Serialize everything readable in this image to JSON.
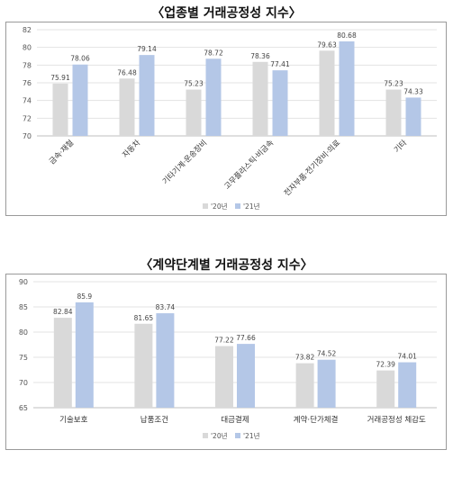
{
  "chart_data": [
    {
      "type": "bar",
      "title": "〈업종별 거래공정성 지수〉",
      "categories": [
        "금속·재철",
        "자동차",
        "기타기계·운송장비",
        "고무플라스틱·비금속",
        "전자부품·전기장비·의료",
        "기타"
      ],
      "series": [
        {
          "name": "'20년",
          "color": "#d9d9d9",
          "values": [
            75.91,
            76.48,
            75.23,
            78.36,
            79.63,
            75.23
          ]
        },
        {
          "name": "'21년",
          "color": "#b4c7e7",
          "values": [
            78.06,
            79.14,
            78.72,
            77.41,
            80.68,
            74.33
          ]
        }
      ],
      "ylim": [
        70,
        82
      ],
      "yticks": [
        70,
        72,
        74,
        76,
        78,
        80,
        82
      ],
      "legend": "bottom",
      "grid": true
    },
    {
      "type": "bar",
      "title": "〈계약단계별 거래공정성 지수〉",
      "categories": [
        "기술보호",
        "납품조건",
        "대금결제",
        "계약·단가체결",
        "거래공정성 체감도"
      ],
      "series": [
        {
          "name": "'20년",
          "color": "#d9d9d9",
          "values": [
            82.84,
            81.65,
            77.22,
            73.82,
            72.39
          ]
        },
        {
          "name": "'21년",
          "color": "#b4c7e7",
          "values": [
            85.9,
            83.74,
            77.66,
            74.52,
            74.01
          ]
        }
      ],
      "ylim": [
        65,
        90
      ],
      "yticks": [
        65,
        70,
        75,
        80,
        85,
        90
      ],
      "legend": "bottom",
      "grid": true
    }
  ]
}
